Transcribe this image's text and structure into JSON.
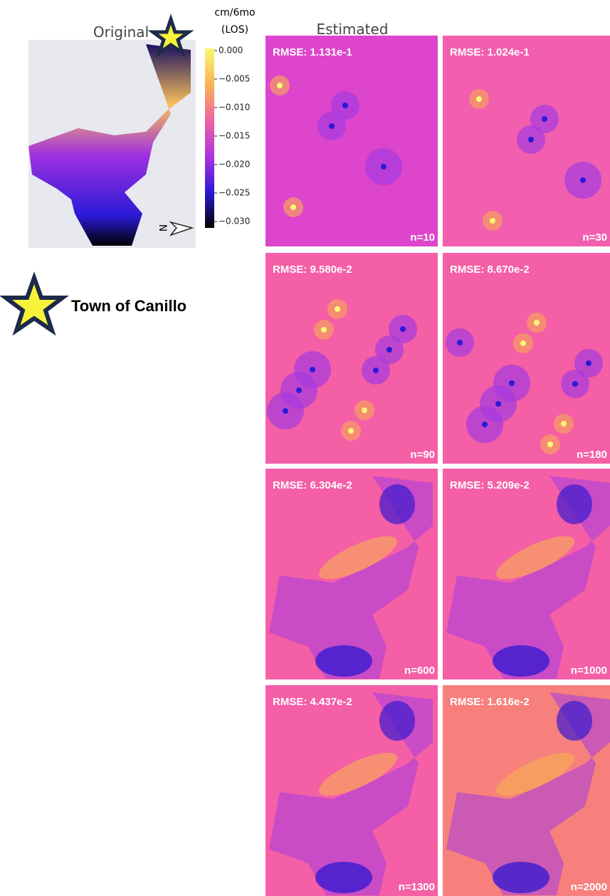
{
  "original_title": "Original",
  "estimated_title": "Estimated",
  "colorbar": {
    "unit": "cm/6mo",
    "unit_note": "(LOS)",
    "ticks": [
      "0.000",
      "−0.005",
      "−0.010",
      "−0.015",
      "−0.020",
      "−0.025",
      "−0.030"
    ]
  },
  "legend": {
    "label": "Town of Canillo"
  },
  "north_label": "N",
  "panels": [
    {
      "rmse": "RMSE: 1.131e-1",
      "n": "n=10"
    },
    {
      "rmse": "RMSE: 1.024e-1",
      "n": "n=30"
    },
    {
      "rmse": "RMSE: 9.580e-2",
      "n": "n=90"
    },
    {
      "rmse": "RMSE: 8.670e-2",
      "n": "n=180"
    },
    {
      "rmse": "RMSE: 6.304e-2",
      "n": "n=600"
    },
    {
      "rmse": "RMSE: 5.209e-2",
      "n": "n=1000"
    },
    {
      "rmse": "RMSE: 4.437e-2",
      "n": "n=1300"
    },
    {
      "rmse": "RMSE: 1.616e-2",
      "n": "n=2000"
    }
  ]
}
